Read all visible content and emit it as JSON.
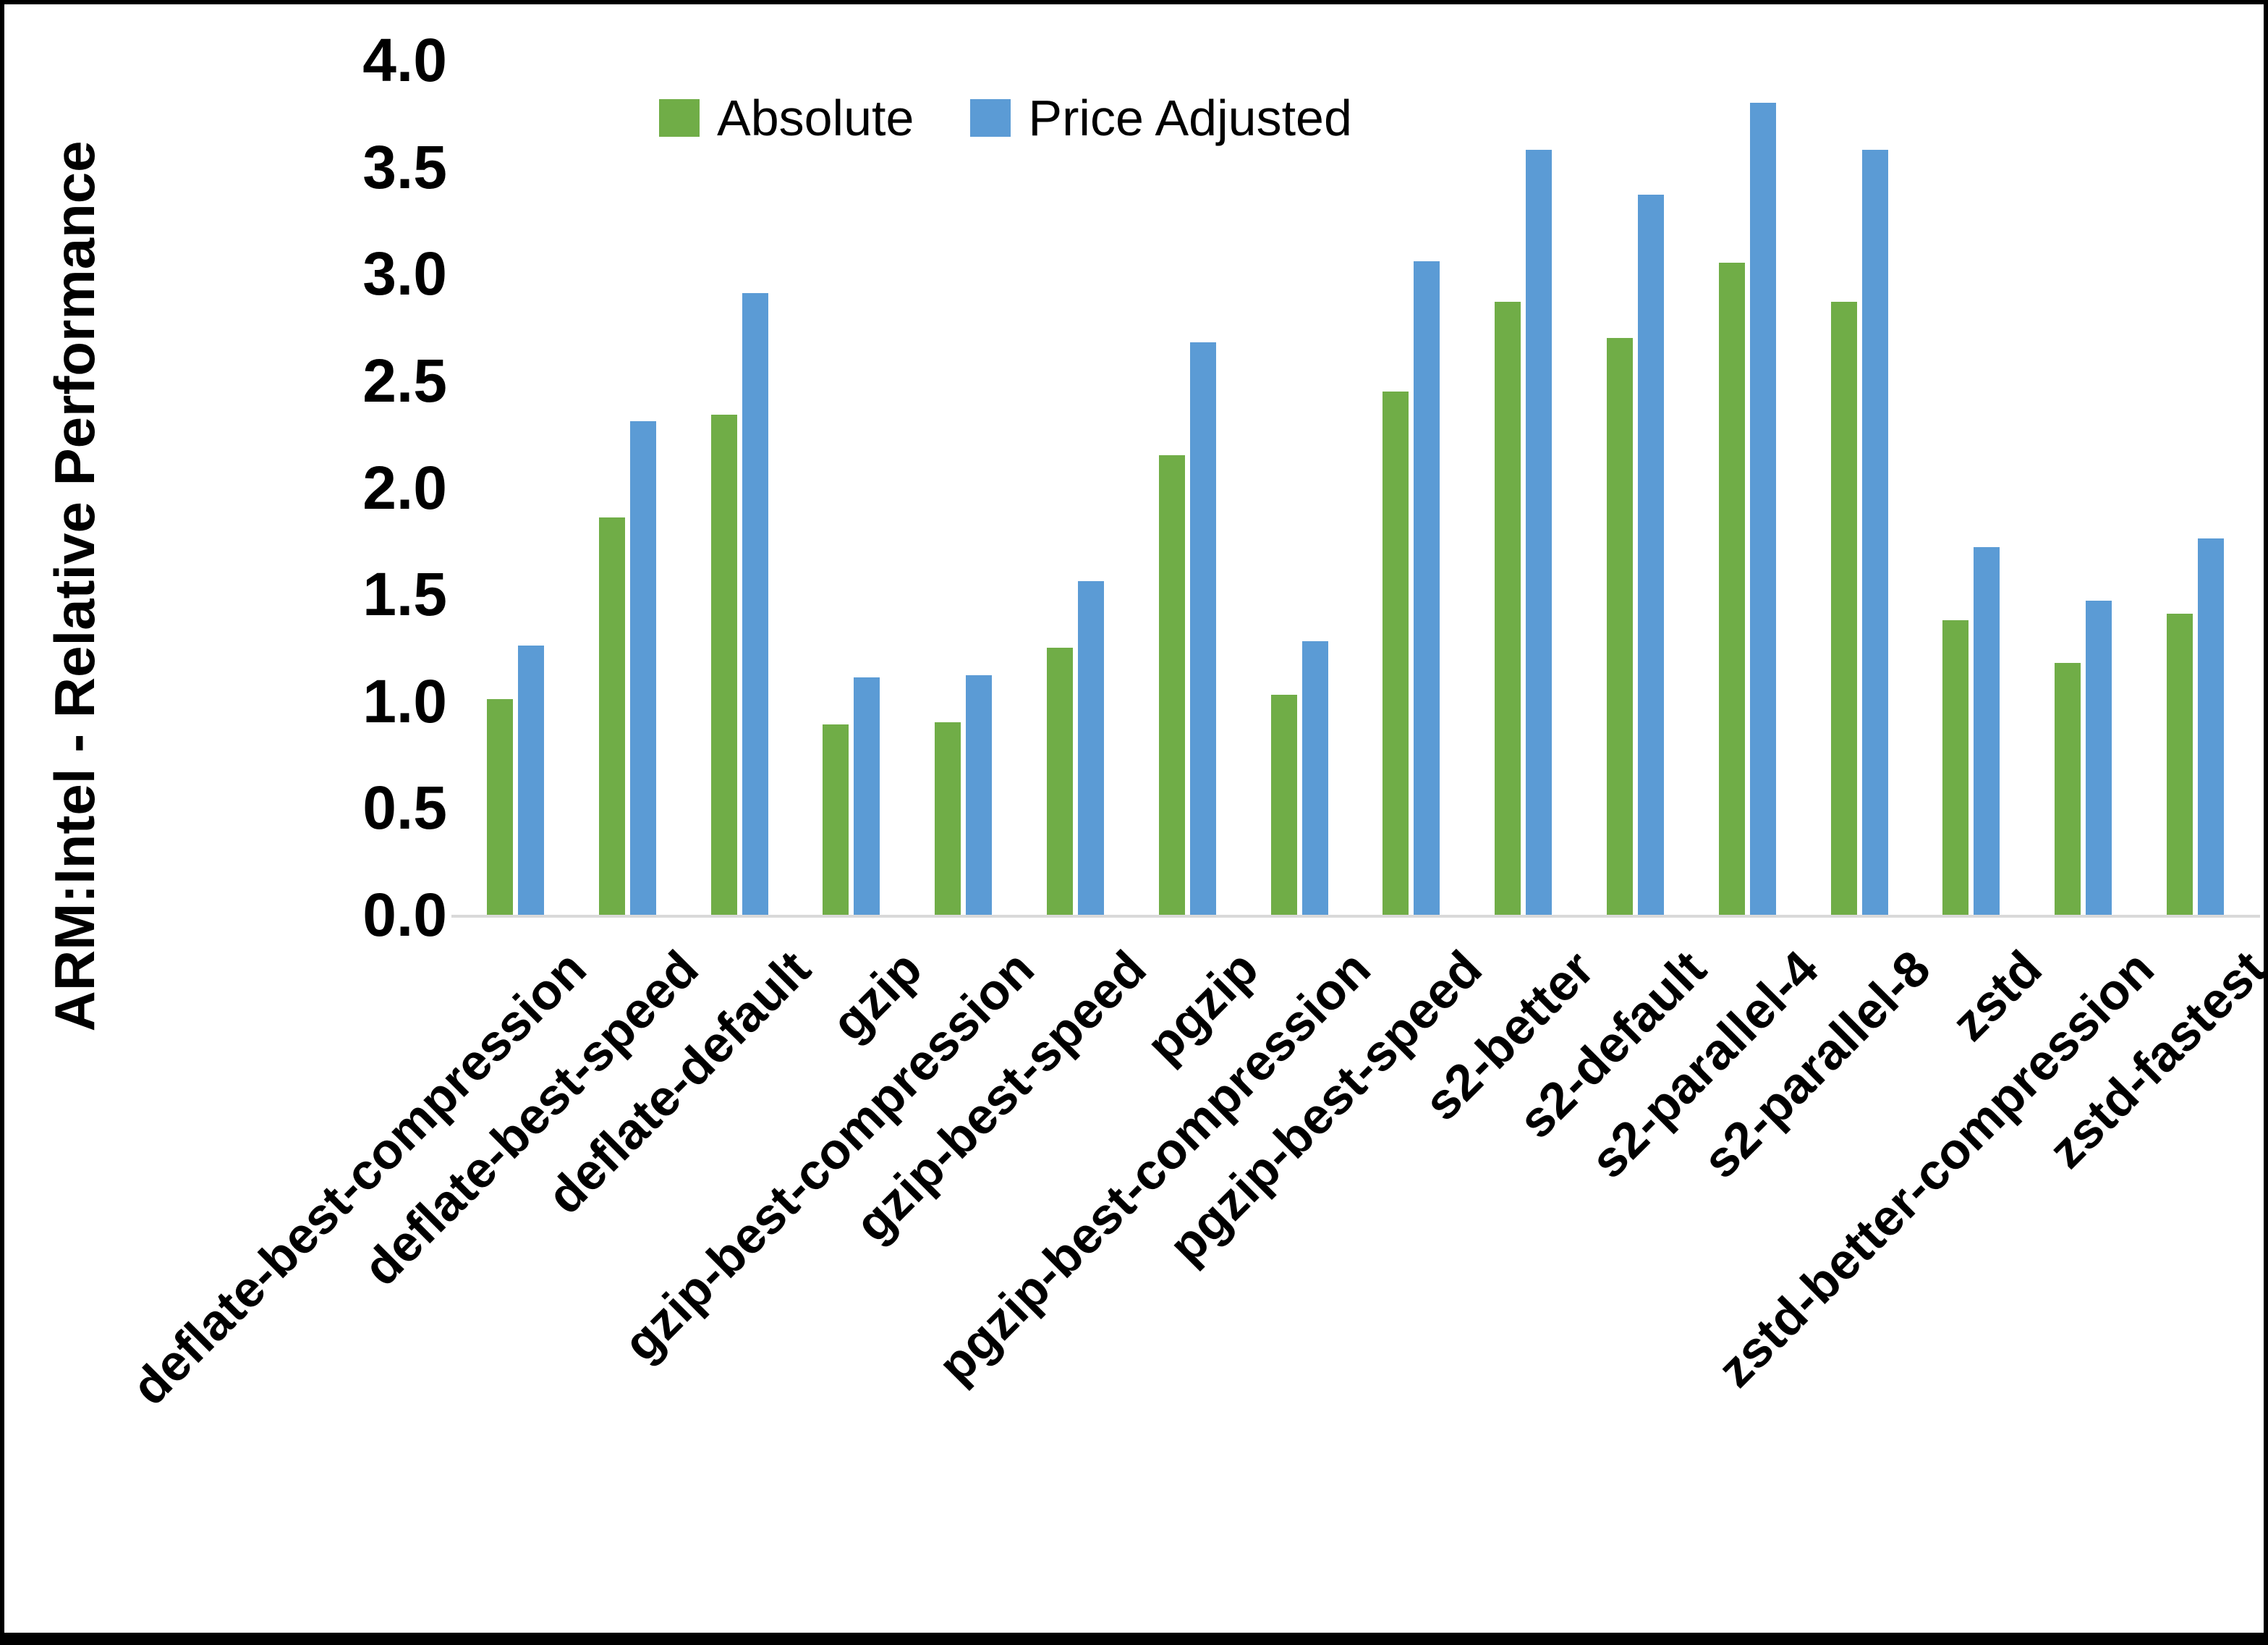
{
  "chart_data": {
    "type": "bar",
    "title": "",
    "ylabel": "ARM:Intel - Relative Performance",
    "xlabel": "",
    "ylim": [
      0.0,
      4.0
    ],
    "ytick_step": 0.5,
    "yticks": [
      "4.0",
      "3.5",
      "3.0",
      "2.5",
      "2.0",
      "1.5",
      "1.0",
      "0.5",
      "0.0"
    ],
    "grid": false,
    "legend_position": "top-center",
    "axis_line_color": "#d9d9d9",
    "text_color": "#000000",
    "categories": [
      "deflate-best-compression",
      "deflate-best-speed",
      "deflate-default",
      "gzip",
      "gzip-best-compression",
      "gzip-best-speed",
      "pgzip",
      "pgzip-best-compression",
      "pgzip-best-speed",
      "s2-better",
      "s2-default",
      "s2-parallel-4",
      "s2-parallel-8",
      "zstd",
      "zstd-better-compression",
      "zstd-fastest"
    ],
    "series": [
      {
        "name": "Absolute",
        "color": "#70AD47",
        "values": [
          1.01,
          1.86,
          2.34,
          0.89,
          0.9,
          1.25,
          2.15,
          1.03,
          2.45,
          2.87,
          2.7,
          3.05,
          2.87,
          1.38,
          1.18,
          1.41
        ]
      },
      {
        "name": "Price Adjusted",
        "color": "#5B9BD5",
        "values": [
          1.26,
          2.31,
          2.91,
          1.11,
          1.12,
          1.56,
          2.68,
          1.28,
          3.06,
          3.58,
          3.37,
          3.8,
          3.58,
          1.72,
          1.47,
          1.76
        ]
      }
    ]
  }
}
